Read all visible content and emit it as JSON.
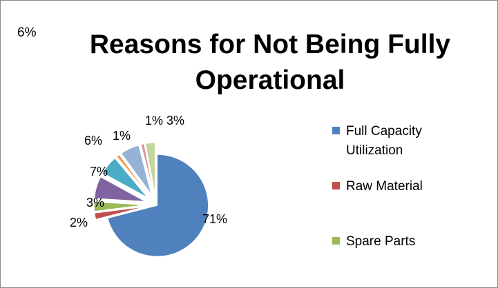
{
  "corner_note": "6%",
  "chart_data": {
    "type": "pie",
    "title_lines": [
      "Reasons for Not Being Fully",
      "Operational"
    ],
    "slices": [
      {
        "label": "Full Capacity Utilization",
        "value": 71,
        "text": "71%",
        "color": "#4f81bd"
      },
      {
        "label": "Raw Material",
        "value": 2,
        "text": "2%",
        "color": "#c0504d"
      },
      {
        "label": "Spare Parts",
        "value": 3,
        "text": "3%",
        "color": "#9bbb59"
      },
      {
        "label": "",
        "value": 7,
        "text": "7%",
        "color": "#8064a2"
      },
      {
        "label": "",
        "value": 6,
        "text": "6%",
        "color": "#4bacc6"
      },
      {
        "label": "",
        "value": 1,
        "text": "1%",
        "color": "#f79646"
      },
      {
        "label": "",
        "value": 6,
        "text": "",
        "color": "#95b3d7"
      },
      {
        "label": "",
        "value": 1,
        "text": "1%",
        "color": "#d99694"
      },
      {
        "label": "",
        "value": 3,
        "text": "3%",
        "color": "#c3d69b"
      }
    ],
    "legend": {
      "placement": "right",
      "items": [
        {
          "label": "Full Capacity Utilization",
          "color": "#4f81bd"
        },
        {
          "label": "Raw Material",
          "color": "#c0504d"
        },
        {
          "label": "Spare Parts",
          "color": "#9bbb59"
        }
      ]
    }
  }
}
